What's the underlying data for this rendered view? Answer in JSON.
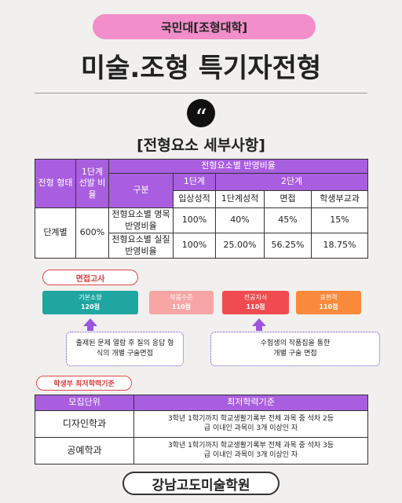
{
  "header": {
    "badge": "국민대[조형대학]",
    "title": "미술.조형 특기자전형",
    "section": "[전형요소 세부사항]"
  },
  "ratio_table": {
    "head": {
      "type": "전형 형태",
      "first_rate": "1단계 선발 비율",
      "group": "전형요소별 반영비율",
      "item": "구분",
      "stage1": "1단계",
      "stage2": "2단계",
      "cols": [
        "입상성적",
        "1단계성적",
        "면접",
        "학생부교과"
      ]
    },
    "stage": "단계별",
    "rate": "600%",
    "rows": [
      [
        "전형요소별 명목 반영비율",
        "100%",
        "40%",
        "45%",
        "15%"
      ],
      [
        "전형요소별 실질 반영비율",
        "100%",
        "25.00%",
        "56.25%",
        "18.75%"
      ]
    ]
  },
  "interview": {
    "label": "면접고사",
    "items": [
      [
        "기본소양",
        "120점"
      ],
      [
        "작품수준",
        "110점"
      ],
      [
        "전공지식",
        "110점"
      ],
      [
        "표현력",
        "110점"
      ]
    ],
    "notes": [
      "출제된 문제 열람 후 질의 응답 형식의 개별 구술면접",
      "수험생의 작품집을 통한 개별 구술 면접"
    ]
  },
  "minimum": {
    "label": "학생부 최저학력기준",
    "head": [
      "모집단위",
      "최저학력기준"
    ],
    "rows": [
      [
        "디자인학과",
        "3학년 1학기까지 학교생활기록부 전체 과목 중 석차 2등급 이내인 과목이 3개 이상인 자"
      ],
      [
        "공예학과",
        "3학년 1학기까지 학교생활기록부 전체 과목 중 석차 3등급 이내인 과목이 3개 이상인 자"
      ]
    ]
  },
  "footer": "강남고도미술학원"
}
